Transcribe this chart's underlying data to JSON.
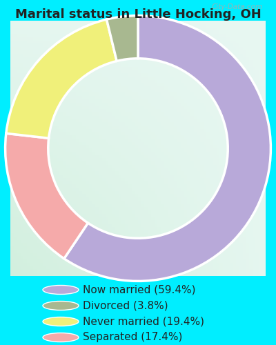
{
  "title": "Marital status in Little Hocking, OH",
  "slices": [
    59.4,
    17.4,
    19.4,
    3.8
  ],
  "labels": [
    "Now married (59.4%)",
    "Divorced (3.8%)",
    "Never married (19.4%)",
    "Separated (17.4%)"
  ],
  "legend_order_colors": [
    "#b8a9d9",
    "#a8b890",
    "#f0f07a",
    "#f5aaaa"
  ],
  "slice_colors": [
    "#b8a9d9",
    "#f5aaaa",
    "#f0f07a",
    "#a8b890"
  ],
  "outer_bg": "#00eeff",
  "chart_bg_tl": "#daf5ee",
  "chart_bg_br": "#d8f0d4",
  "title_fontsize": 13,
  "legend_fontsize": 11,
  "watermark": "City-Data.com",
  "start_angle": 90,
  "donut_width": 0.42
}
